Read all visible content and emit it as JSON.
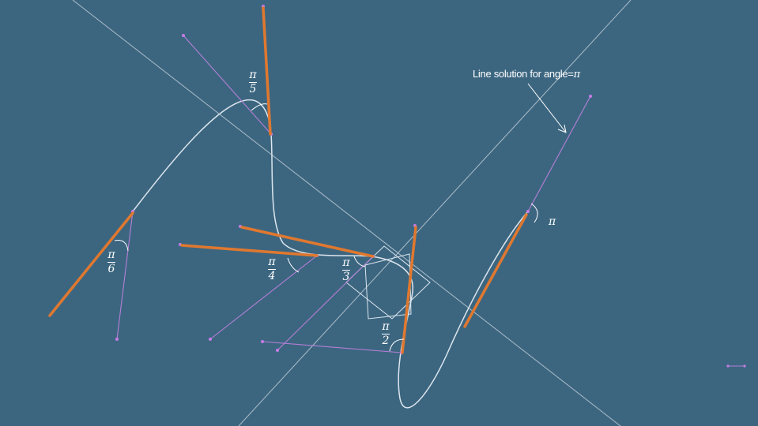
{
  "colors": {
    "background": "#3c6680",
    "curve": "#dde6ee",
    "solution_segment": "#e0782f",
    "construction_line": "#b57fd6",
    "construction_point": "#c77ce6",
    "guide_line": "#c9d3db"
  },
  "annotation": {
    "prefix": "Line solution for angle=",
    "symbol": "π"
  },
  "angle_labels": [
    {
      "id": "pi-over-5",
      "num": "π",
      "den": "5"
    },
    {
      "id": "pi-over-6",
      "num": "π",
      "den": "6"
    },
    {
      "id": "pi-over-4",
      "num": "π",
      "den": "4"
    },
    {
      "id": "pi-over-3",
      "num": "π",
      "den": "3"
    },
    {
      "id": "pi-over-2",
      "num": "π",
      "den": "2"
    },
    {
      "id": "pi",
      "num": "π",
      "den": ""
    }
  ]
}
